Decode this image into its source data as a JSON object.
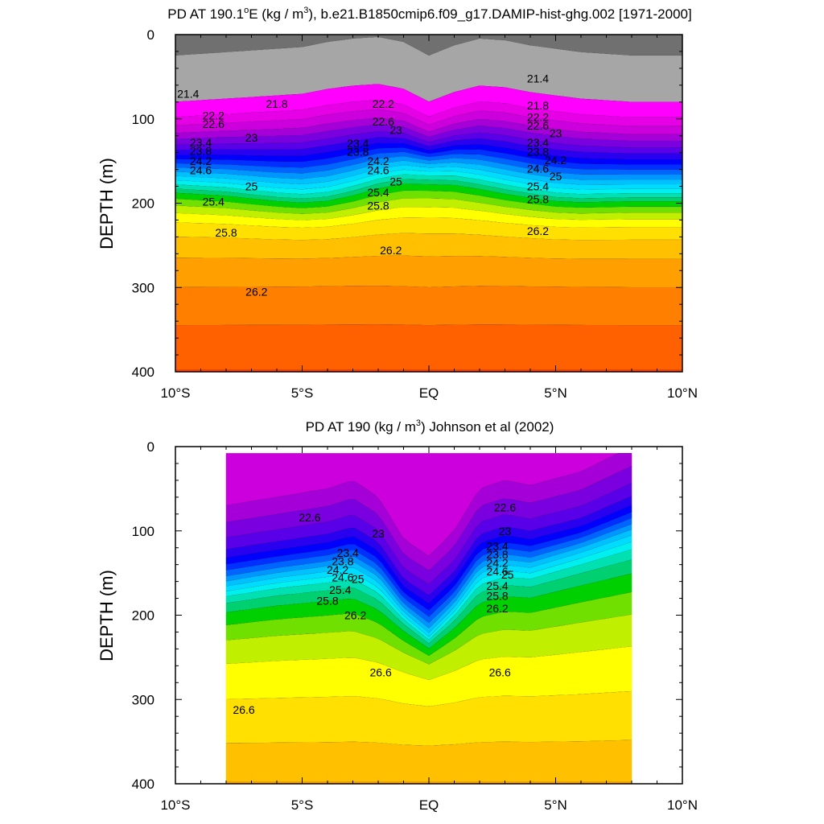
{
  "colors": {
    "ramp": [
      "#707070",
      "#a6a6a6",
      "#ff00ff",
      "#e600e6",
      "#cc00dd",
      "#a600d9",
      "#7a00e0",
      "#5a00e8",
      "#2a00f0",
      "#0000ff",
      "#0030ff",
      "#0064ff",
      "#0096ff",
      "#00c0ff",
      "#00dcff",
      "#00f0f0",
      "#00e0b0",
      "#00d070",
      "#00d000",
      "#70e000",
      "#c0f000",
      "#ffff00",
      "#ffe000",
      "#ffc000",
      "#ffa000",
      "#ff8000",
      "#ff6000",
      "#ff3c00",
      "#ff1800",
      "#ee0000",
      "#dd0000",
      "#cc0000"
    ]
  },
  "chart_data": [
    {
      "type": "contour",
      "title_pre": "PD AT 190.1",
      "title_sup1": "o",
      "title_mid": "E (kg / m",
      "title_sup2": "3",
      "title_post": "), b.e21.B1850cmip6.f09_g17.DAMIP-hist-ghg.002 [1971-2000]",
      "xlabel": "",
      "ylabel": "DEPTH (m)",
      "xlim": [
        -10,
        10
      ],
      "ylim": [
        400,
        0
      ],
      "x_tick_values": [
        -10,
        -5,
        0,
        5,
        10
      ],
      "x_tick_labels": [
        "10°S",
        "5°S",
        "EQ",
        "5°N",
        "10°N"
      ],
      "y_tick_values": [
        0,
        100,
        200,
        300,
        400
      ],
      "y_tick_labels": [
        "0",
        "100",
        "200",
        "300",
        "400"
      ],
      "data_x": [
        -10,
        10
      ],
      "top_depth": 0,
      "level_start": 21.0,
      "level_step": 0.2,
      "profile_x": [
        -10,
        -8,
        -6,
        -5,
        -4,
        -3,
        -2,
        -1,
        0,
        1,
        2,
        3,
        4,
        5,
        6,
        8,
        10
      ],
      "profile_d": [
        0,
        -2,
        -4,
        -5,
        -8,
        -10,
        -11,
        -8,
        0,
        -6,
        -10,
        -9,
        -6,
        -4,
        -2,
        0,
        0
      ],
      "profile_deep": [
        0,
        10,
        25,
        30,
        30,
        20,
        5,
        -10,
        -20,
        -10,
        5,
        15,
        20,
        25,
        25,
        20,
        20
      ],
      "base_depths": [
        25,
        80,
        98,
        108,
        117,
        124,
        131,
        137,
        143,
        148,
        153,
        158,
        163,
        168,
        173,
        178,
        183,
        188,
        195,
        203,
        212,
        223,
        240,
        265,
        300,
        345,
        398
      ],
      "contour_labels": [
        {
          "lat": -9.5,
          "depth": 70,
          "text": "21.4"
        },
        {
          "lat": -6.0,
          "depth": 82,
          "text": "21.8"
        },
        {
          "lat": -8.5,
          "depth": 96,
          "text": "22.2"
        },
        {
          "lat": -8.5,
          "depth": 106,
          "text": "22.6"
        },
        {
          "lat": -7.0,
          "depth": 122,
          "text": "23"
        },
        {
          "lat": -9.0,
          "depth": 128,
          "text": "23.4"
        },
        {
          "lat": -9.0,
          "depth": 138,
          "text": "23.8"
        },
        {
          "lat": -9.0,
          "depth": 150,
          "text": "24.2"
        },
        {
          "lat": -9.0,
          "depth": 161,
          "text": "24.6"
        },
        {
          "lat": -7.0,
          "depth": 180,
          "text": "25"
        },
        {
          "lat": -8.5,
          "depth": 198,
          "text": "25.4"
        },
        {
          "lat": -8.0,
          "depth": 235,
          "text": "25.8"
        },
        {
          "lat": -6.8,
          "depth": 305,
          "text": "26.2"
        },
        {
          "lat": -1.8,
          "depth": 82,
          "text": "22.2"
        },
        {
          "lat": -1.8,
          "depth": 103,
          "text": "22.6"
        },
        {
          "lat": -1.3,
          "depth": 113,
          "text": "23"
        },
        {
          "lat": -2.8,
          "depth": 129,
          "text": "23.4"
        },
        {
          "lat": -2.8,
          "depth": 139,
          "text": "23.8"
        },
        {
          "lat": -2.0,
          "depth": 150,
          "text": "24.2"
        },
        {
          "lat": -2.0,
          "depth": 161,
          "text": "24.6"
        },
        {
          "lat": -1.3,
          "depth": 174,
          "text": "25"
        },
        {
          "lat": -2.0,
          "depth": 187,
          "text": "25.4"
        },
        {
          "lat": -2.0,
          "depth": 203,
          "text": "25.8"
        },
        {
          "lat": -1.5,
          "depth": 256,
          "text": "26.2"
        },
        {
          "lat": 4.3,
          "depth": 52,
          "text": "21.4"
        },
        {
          "lat": 4.3,
          "depth": 84,
          "text": "21.8"
        },
        {
          "lat": 4.3,
          "depth": 98,
          "text": "22.2"
        },
        {
          "lat": 4.3,
          "depth": 108,
          "text": "22.6"
        },
        {
          "lat": 5.0,
          "depth": 117,
          "text": "23"
        },
        {
          "lat": 4.3,
          "depth": 128,
          "text": "23.4"
        },
        {
          "lat": 4.3,
          "depth": 139,
          "text": "23.8"
        },
        {
          "lat": 5.0,
          "depth": 149,
          "text": "24.2"
        },
        {
          "lat": 4.3,
          "depth": 159,
          "text": "24.6"
        },
        {
          "lat": 5.0,
          "depth": 168,
          "text": "25"
        },
        {
          "lat": 4.3,
          "depth": 180,
          "text": "25.4"
        },
        {
          "lat": 4.3,
          "depth": 195,
          "text": "25.8"
        },
        {
          "lat": 4.3,
          "depth": 233,
          "text": "26.2"
        }
      ]
    },
    {
      "type": "contour",
      "title_pre": "PD AT 190 (kg / m",
      "title_sup1": "3",
      "title_mid": ") Johnson et al (2002)",
      "title_sup2": "",
      "title_post": "",
      "xlabel": "",
      "ylabel": "DEPTH (m)",
      "xlim": [
        -10,
        10
      ],
      "ylim": [
        400,
        0
      ],
      "x_tick_values": [
        -10,
        -5,
        0,
        5,
        10
      ],
      "x_tick_labels": [
        "10°S",
        "5°S",
        "EQ",
        "5°N",
        "10°N"
      ],
      "y_tick_values": [
        0,
        100,
        200,
        300,
        400
      ],
      "y_tick_labels": [
        "0",
        "100",
        "200",
        "300",
        "400"
      ],
      "data_x": [
        -8,
        8
      ],
      "top_depth": 8,
      "level_start": 21.8,
      "level_step": 0.2,
      "profile_x": [
        -8,
        -6,
        -4,
        -3,
        -2,
        -1,
        0,
        1,
        2,
        3,
        4,
        6,
        8
      ],
      "profile_d": [
        0,
        -5,
        -10,
        -15,
        -5,
        20,
        30,
        15,
        -10,
        -15,
        -12,
        -20,
        -35
      ],
      "profile_deep": [
        0,
        -10,
        -15,
        -15,
        0,
        20,
        50,
        20,
        -10,
        -20,
        -20,
        -40,
        -50
      ],
      "base_depths": [
        70,
        90,
        108,
        122,
        132,
        140,
        147,
        154,
        160,
        166,
        172,
        178,
        186,
        197,
        212,
        230,
        258,
        300,
        352,
        398
      ],
      "contour_labels": [
        {
          "lat": -4.7,
          "depth": 84,
          "text": "22.6"
        },
        {
          "lat": -2.0,
          "depth": 103,
          "text": "23"
        },
        {
          "lat": -3.2,
          "depth": 126,
          "text": "23.4"
        },
        {
          "lat": -3.4,
          "depth": 136,
          "text": "23.8"
        },
        {
          "lat": -3.6,
          "depth": 146,
          "text": "24.2"
        },
        {
          "lat": -3.4,
          "depth": 155,
          "text": "24.6"
        },
        {
          "lat": -2.8,
          "depth": 157,
          "text": "25"
        },
        {
          "lat": -3.5,
          "depth": 170,
          "text": "25.4"
        },
        {
          "lat": -4.0,
          "depth": 183,
          "text": "25.8"
        },
        {
          "lat": -2.9,
          "depth": 200,
          "text": "26.2"
        },
        {
          "lat": -1.9,
          "depth": 268,
          "text": "26.6"
        },
        {
          "lat": -7.3,
          "depth": 312,
          "text": "26.6"
        },
        {
          "lat": 3.0,
          "depth": 72,
          "text": "22.6"
        },
        {
          "lat": 3.0,
          "depth": 100,
          "text": "23"
        },
        {
          "lat": 2.7,
          "depth": 118,
          "text": "23.4"
        },
        {
          "lat": 2.7,
          "depth": 128,
          "text": "23.8"
        },
        {
          "lat": 2.7,
          "depth": 138,
          "text": "24.2"
        },
        {
          "lat": 2.7,
          "depth": 148,
          "text": "24.6"
        },
        {
          "lat": 3.1,
          "depth": 152,
          "text": "25"
        },
        {
          "lat": 2.7,
          "depth": 165,
          "text": "25.4"
        },
        {
          "lat": 2.7,
          "depth": 177,
          "text": "25.8"
        },
        {
          "lat": 2.7,
          "depth": 192,
          "text": "26.2"
        },
        {
          "lat": 2.8,
          "depth": 268,
          "text": "26.6"
        }
      ]
    }
  ]
}
